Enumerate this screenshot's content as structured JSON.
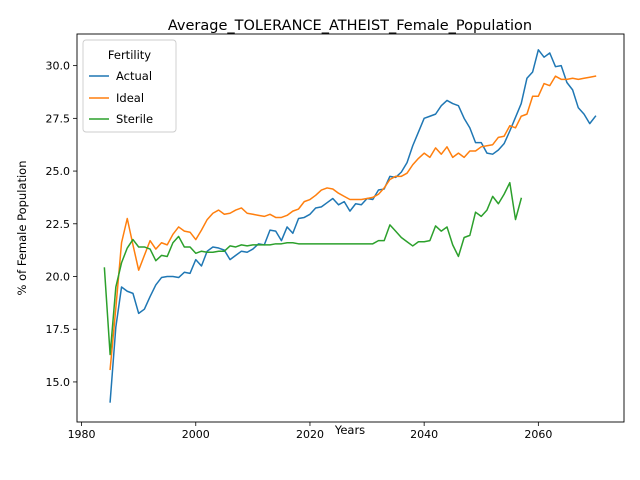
{
  "chart_data": {
    "type": "line",
    "title": "Average_TOLERANCE_ATHEIST_Female_Population",
    "xlabel": "Years",
    "ylabel": "% of Female Population",
    "xlim": [
      1979.2,
      2075.0
    ],
    "ylim": [
      13.1,
      31.5
    ],
    "xticks": [
      1980,
      2000,
      2020,
      2040,
      2060
    ],
    "xtick_labels": [
      "1980",
      "2000",
      "2020",
      "2040",
      "2060"
    ],
    "yticks": [
      15.0,
      17.5,
      20.0,
      22.5,
      25.0,
      27.5,
      30.0
    ],
    "ytick_labels": [
      "15.0",
      "17.5",
      "20.0",
      "22.5",
      "25.0",
      "27.5",
      "30.0"
    ],
    "grid": false,
    "legend": {
      "title": "Fertility",
      "placement": "top-left"
    },
    "series": [
      {
        "name": "Actual",
        "color": "#1f77b4",
        "x": [
          1985,
          1986,
          1987,
          1988,
          1989,
          1990,
          1991,
          1992,
          1993,
          1994,
          1995,
          1996,
          1997,
          1998,
          1999,
          2000,
          2001,
          2002,
          2003,
          2004,
          2005,
          2006,
          2007,
          2008,
          2009,
          2010,
          2011,
          2012,
          2013,
          2014,
          2015,
          2016,
          2017,
          2018,
          2019,
          2020,
          2021,
          2022,
          2023,
          2024,
          2025,
          2026,
          2027,
          2028,
          2029,
          2030,
          2031,
          2032,
          2033,
          2034,
          2035,
          2036,
          2037,
          2038,
          2039,
          2040,
          2041,
          2042,
          2043,
          2044,
          2045,
          2046,
          2047,
          2048,
          2049,
          2050,
          2051,
          2052,
          2053,
          2054,
          2055,
          2056,
          2057,
          2058,
          2059,
          2060,
          2061,
          2062,
          2063,
          2064,
          2065,
          2066,
          2067,
          2068,
          2069,
          2070
        ],
        "y": [
          14.05,
          17.6,
          19.5,
          19.3,
          19.2,
          18.25,
          18.45,
          19.05,
          19.6,
          19.95,
          20.0,
          20.0,
          19.95,
          20.2,
          20.15,
          20.8,
          20.5,
          21.2,
          21.4,
          21.35,
          21.25,
          20.8,
          21.0,
          21.2,
          21.15,
          21.3,
          21.55,
          21.5,
          22.2,
          22.15,
          21.7,
          22.35,
          22.05,
          22.75,
          22.8,
          22.95,
          23.25,
          23.3,
          23.5,
          23.7,
          23.4,
          23.55,
          23.1,
          23.45,
          23.4,
          23.7,
          23.65,
          24.1,
          24.15,
          24.75,
          24.7,
          24.95,
          25.4,
          26.2,
          26.85,
          27.5,
          27.6,
          27.7,
          28.1,
          28.35,
          28.2,
          28.1,
          27.5,
          27.05,
          26.35,
          26.35,
          25.85,
          25.8,
          26.0,
          26.3,
          26.9,
          27.55,
          28.2,
          29.4,
          29.7,
          30.75,
          30.4,
          30.6,
          29.95,
          30.0,
          29.2,
          28.85,
          28.0,
          27.7,
          27.25,
          27.6
        ]
      },
      {
        "name": "Ideal",
        "color": "#ff7f0e",
        "x": [
          1985,
          1986,
          1987,
          1988,
          1989,
          1990,
          1991,
          1992,
          1993,
          1994,
          1995,
          1996,
          1997,
          1998,
          1999,
          2000,
          2001,
          2002,
          2003,
          2004,
          2005,
          2006,
          2007,
          2008,
          2009,
          2010,
          2011,
          2012,
          2013,
          2014,
          2015,
          2016,
          2017,
          2018,
          2019,
          2020,
          2021,
          2022,
          2023,
          2024,
          2025,
          2026,
          2027,
          2028,
          2029,
          2030,
          2031,
          2032,
          2033,
          2034,
          2035,
          2036,
          2037,
          2038,
          2039,
          2040,
          2041,
          2042,
          2043,
          2044,
          2045,
          2046,
          2047,
          2048,
          2049,
          2050,
          2051,
          2052,
          2053,
          2054,
          2055,
          2056,
          2057,
          2058,
          2059,
          2060,
          2061,
          2062,
          2063,
          2064,
          2065,
          2066,
          2067,
          2068,
          2069,
          2070
        ],
        "y": [
          15.6,
          18.5,
          21.6,
          22.75,
          21.5,
          20.3,
          21.0,
          21.7,
          21.3,
          21.6,
          21.5,
          22.0,
          22.35,
          22.15,
          22.1,
          21.75,
          22.2,
          22.7,
          23.0,
          23.15,
          22.95,
          23.0,
          23.15,
          23.25,
          23.0,
          22.95,
          22.9,
          22.85,
          22.95,
          22.8,
          22.8,
          22.9,
          23.1,
          23.2,
          23.55,
          23.65,
          23.85,
          24.1,
          24.2,
          24.15,
          23.95,
          23.8,
          23.65,
          23.65,
          23.65,
          23.7,
          23.75,
          23.9,
          24.2,
          24.6,
          24.75,
          24.75,
          24.9,
          25.3,
          25.6,
          25.85,
          25.65,
          26.1,
          25.8,
          26.15,
          25.65,
          25.85,
          25.65,
          25.95,
          25.95,
          26.15,
          26.2,
          26.25,
          26.6,
          26.65,
          27.15,
          27.05,
          27.6,
          27.7,
          28.55,
          28.55,
          29.15,
          29.05,
          29.5,
          29.35,
          29.35,
          29.4,
          29.35,
          29.4,
          29.45,
          29.5
        ]
      },
      {
        "name": "Sterile",
        "color": "#2ca02c",
        "x": [
          1984,
          1985,
          1986,
          1987,
          1988,
          1989,
          1990,
          1991,
          1992,
          1993,
          1994,
          1995,
          1996,
          1997,
          1998,
          1999,
          2000,
          2001,
          2002,
          2003,
          2004,
          2005,
          2006,
          2007,
          2008,
          2009,
          2010,
          2011,
          2012,
          2013,
          2014,
          2015,
          2016,
          2017,
          2018,
          2019,
          2020,
          2021,
          2022,
          2023,
          2024,
          2025,
          2026,
          2027,
          2028,
          2029,
          2030,
          2031,
          2032,
          2033,
          2034,
          2035,
          2036,
          2037,
          2038,
          2039,
          2040,
          2041,
          2042,
          2043,
          2044,
          2045,
          2046,
          2047,
          2048,
          2049,
          2050,
          2051,
          2052,
          2053,
          2054,
          2055,
          2056,
          2057
        ],
        "y": [
          20.4,
          16.3,
          19.5,
          20.65,
          21.35,
          21.75,
          21.4,
          21.4,
          21.3,
          20.75,
          21.0,
          20.95,
          21.6,
          21.9,
          21.4,
          21.4,
          21.1,
          21.2,
          21.15,
          21.15,
          21.2,
          21.2,
          21.45,
          21.4,
          21.5,
          21.45,
          21.5,
          21.5,
          21.5,
          21.5,
          21.55,
          21.55,
          21.6,
          21.6,
          21.55,
          21.55,
          21.55,
          21.55,
          21.55,
          21.55,
          21.55,
          21.55,
          21.55,
          21.55,
          21.55,
          21.55,
          21.55,
          21.55,
          21.7,
          21.7,
          22.45,
          22.15,
          21.85,
          21.65,
          21.45,
          21.65,
          21.65,
          21.7,
          22.4,
          22.15,
          22.35,
          21.5,
          20.95,
          21.85,
          21.95,
          23.05,
          22.85,
          23.15,
          23.8,
          23.45,
          23.9,
          24.45,
          22.7,
          23.7
        ]
      }
    ]
  }
}
